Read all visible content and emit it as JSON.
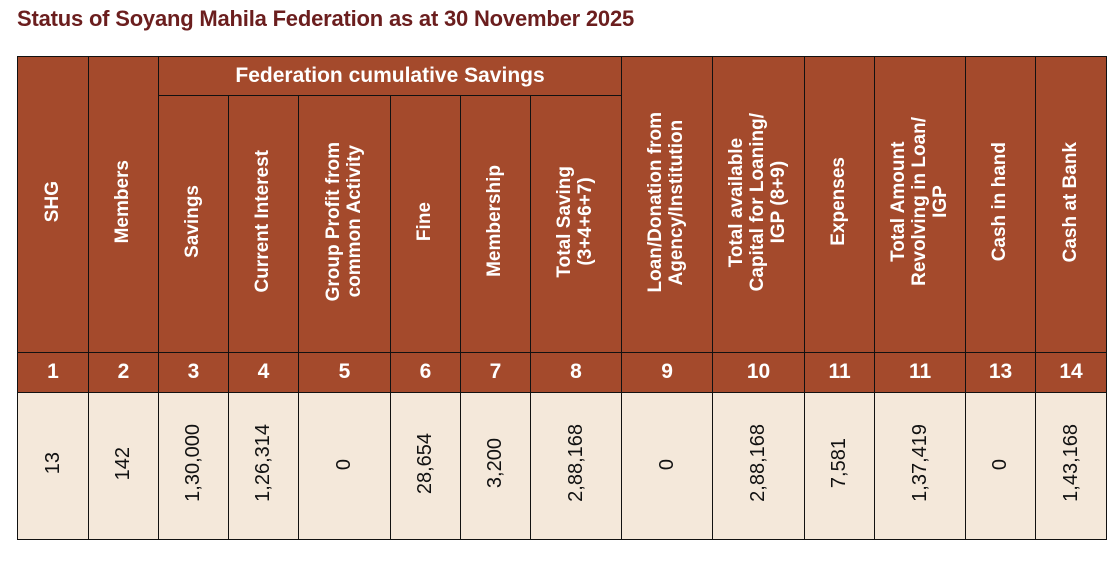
{
  "title": "Status of Soyang Mahila Federation as at 30 November 2025",
  "group_header": "Federation cumulative Savings",
  "columns": [
    {
      "lines": [
        "SHG"
      ]
    },
    {
      "lines": [
        "Members"
      ]
    },
    {
      "lines": [
        "Savings"
      ]
    },
    {
      "lines": [
        "Current Interest"
      ]
    },
    {
      "lines": [
        "Group Profit from",
        "common Activity"
      ]
    },
    {
      "lines": [
        "Fine"
      ]
    },
    {
      "lines": [
        "Membership"
      ]
    },
    {
      "lines": [
        "Total Saving",
        "(3+4+6+7)"
      ]
    },
    {
      "lines": [
        "Loan/Donation from",
        "Agency/Institution"
      ]
    },
    {
      "lines": [
        "Total available",
        "Capital for Loaning/",
        "IGP (8+9)"
      ]
    },
    {
      "lines": [
        "Expenses"
      ]
    },
    {
      "lines": [
        "Total Amount",
        "Revolving in Loan/",
        "IGP"
      ]
    },
    {
      "lines": [
        "Cash in hand"
      ]
    },
    {
      "lines": [
        "Cash at Bank"
      ]
    }
  ],
  "column_numbers": [
    "1",
    "2",
    "3",
    "4",
    "5",
    "6",
    "7",
    "8",
    "9",
    "10",
    "11",
    "11",
    "13",
    "14"
  ],
  "row_values": [
    "13",
    "142",
    "1,30,000",
    "1,26,314",
    "0",
    "28,654",
    "3,200",
    "2,88,168",
    "0",
    "2,88,168",
    "7,581",
    "1,37,419",
    "0",
    "1,43,168"
  ]
}
